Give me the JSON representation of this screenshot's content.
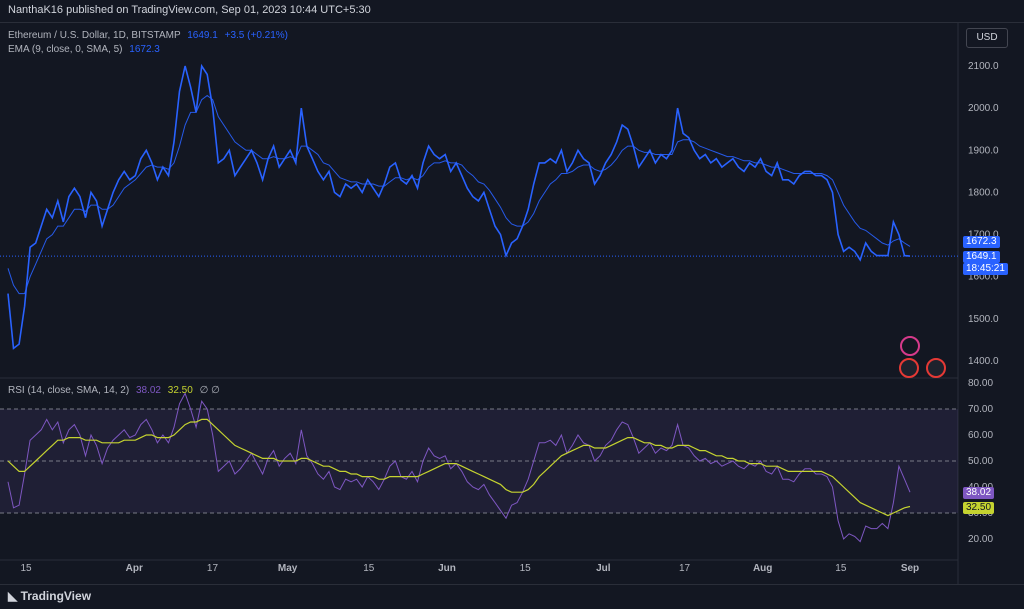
{
  "header": {
    "publisher": "NanthaK16 published on TradingView.com, Sep 01, 2023 10:44 UTC+5:30"
  },
  "price_legend": {
    "symbol": "Ethereum / U.S. Dollar, 1D, BITSTAMP",
    "price": "1649.1",
    "change": "+3.5 (+0.21%)",
    "ema_label": "EMA (9, close, 0, SMA, 5)",
    "ema_value": "1672.3"
  },
  "rsi_legend": {
    "label": "RSI (14, close, SMA, 14, 2)",
    "rsi_value": "38.02",
    "ma_value": "32.50",
    "extra": "∅ ∅"
  },
  "currency_button": "USD",
  "price_tags": {
    "ema": "1672.3",
    "price": "1649.1",
    "countdown": "18:45:21"
  },
  "rsi_tags": {
    "rsi": "38.02",
    "ma": "32.50"
  },
  "footer": {
    "brand": "TradingView"
  },
  "colors": {
    "price_line": "#2962ff",
    "ema_line": "#2962ff",
    "rsi_line": "#7e57c2",
    "rsi_ma_line": "#c5d330",
    "background": "#131722"
  },
  "chart_data": [
    {
      "type": "line",
      "title": "Ethereum / U.S. Dollar, 1D, BITSTAMP",
      "x_tick_labels": [
        "15",
        "Apr",
        "17",
        "May",
        "15",
        "Jun",
        "15",
        "Jul",
        "17",
        "Aug",
        "15",
        "Sep"
      ],
      "y_ticks": [
        "1400.0",
        "1500.0",
        "1600.0",
        "1700.0",
        "1800.0",
        "1900.0",
        "2000.0",
        "2100.0"
      ],
      "ylim": [
        1400,
        2100
      ],
      "series": [
        {
          "name": "Ethereum / U.S. Dollar",
          "values": [
            1560,
            1430,
            1440,
            1530,
            1670,
            1680,
            1720,
            1760,
            1740,
            1780,
            1730,
            1790,
            1810,
            1790,
            1740,
            1800,
            1780,
            1720,
            1760,
            1800,
            1830,
            1850,
            1830,
            1840,
            1880,
            1900,
            1870,
            1830,
            1860,
            1840,
            1920,
            2040,
            2100,
            2050,
            1990,
            2100,
            2080,
            2000,
            1870,
            1880,
            1900,
            1840,
            1860,
            1880,
            1900,
            1870,
            1830,
            1880,
            1910,
            1860,
            1880,
            1900,
            1870,
            2000,
            1910,
            1880,
            1850,
            1830,
            1850,
            1800,
            1790,
            1820,
            1810,
            1820,
            1800,
            1830,
            1810,
            1790,
            1820,
            1860,
            1870,
            1830,
            1820,
            1840,
            1810,
            1870,
            1910,
            1890,
            1880,
            1890,
            1850,
            1870,
            1840,
            1810,
            1790,
            1780,
            1800,
            1760,
            1720,
            1700,
            1650,
            1680,
            1690,
            1720,
            1760,
            1820,
            1870,
            1870,
            1880,
            1870,
            1900,
            1850,
            1870,
            1900,
            1880,
            1870,
            1820,
            1840,
            1870,
            1890,
            1920,
            1960,
            1950,
            1910,
            1860,
            1880,
            1900,
            1870,
            1890,
            1880,
            1900,
            2000,
            1940,
            1930,
            1900,
            1880,
            1890,
            1870,
            1880,
            1860,
            1870,
            1880,
            1860,
            1850,
            1870,
            1860,
            1880,
            1850,
            1840,
            1870,
            1830,
            1830,
            1820,
            1840,
            1850,
            1850,
            1840,
            1840,
            1830,
            1800,
            1700,
            1660,
            1670,
            1660,
            1640,
            1680,
            1660,
            1650,
            1650,
            1650,
            1730,
            1700,
            1650,
            1649
          ]
        },
        {
          "name": "EMA (9, close, 0, SMA, 5)",
          "values": [
            1620,
            1580,
            1560,
            1560,
            1600,
            1630,
            1660,
            1690,
            1700,
            1720,
            1720,
            1740,
            1760,
            1760,
            1755,
            1770,
            1770,
            1760,
            1760,
            1770,
            1790,
            1810,
            1820,
            1830,
            1845,
            1860,
            1865,
            1860,
            1860,
            1855,
            1870,
            1910,
            1960,
            1990,
            1990,
            2020,
            2030,
            2020,
            1980,
            1960,
            1940,
            1920,
            1910,
            1900,
            1900,
            1890,
            1880,
            1880,
            1885,
            1880,
            1880,
            1885,
            1880,
            1910,
            1910,
            1900,
            1890,
            1870,
            1865,
            1850,
            1835,
            1830,
            1825,
            1825,
            1820,
            1820,
            1820,
            1815,
            1815,
            1825,
            1835,
            1835,
            1830,
            1835,
            1830,
            1840,
            1860,
            1870,
            1870,
            1875,
            1870,
            1870,
            1865,
            1850,
            1840,
            1825,
            1820,
            1805,
            1785,
            1765,
            1740,
            1725,
            1720,
            1720,
            1730,
            1750,
            1780,
            1800,
            1820,
            1830,
            1845,
            1845,
            1850,
            1860,
            1865,
            1865,
            1855,
            1850,
            1855,
            1865,
            1880,
            1900,
            1910,
            1910,
            1900,
            1895,
            1895,
            1890,
            1890,
            1890,
            1890,
            1920,
            1925,
            1925,
            1920,
            1910,
            1905,
            1900,
            1895,
            1890,
            1885,
            1885,
            1880,
            1875,
            1875,
            1870,
            1870,
            1865,
            1860,
            1860,
            1855,
            1850,
            1845,
            1845,
            1845,
            1845,
            1845,
            1845,
            1840,
            1830,
            1800,
            1770,
            1750,
            1730,
            1715,
            1710,
            1700,
            1690,
            1680,
            1675,
            1685,
            1690,
            1680,
            1672
          ]
        }
      ]
    },
    {
      "type": "line",
      "title": "RSI (14, close, SMA, 14, 2)",
      "y_ticks": [
        "20.00",
        "30.00",
        "40.00",
        "50.00",
        "60.00",
        "70.00",
        "80.00"
      ],
      "ylim": [
        15,
        80
      ],
      "bands": [
        30,
        50,
        70
      ],
      "series": [
        {
          "name": "RSI",
          "values": [
            42,
            32,
            33,
            45,
            58,
            60,
            62,
            66,
            62,
            65,
            57,
            62,
            64,
            60,
            52,
            60,
            56,
            49,
            55,
            58,
            60,
            62,
            59,
            60,
            64,
            66,
            62,
            57,
            60,
            57,
            63,
            72,
            76,
            70,
            63,
            73,
            70,
            60,
            46,
            48,
            50,
            45,
            47,
            50,
            53,
            49,
            45,
            51,
            54,
            48,
            51,
            53,
            49,
            62,
            52,
            49,
            45,
            43,
            46,
            40,
            39,
            43,
            42,
            43,
            40,
            44,
            42,
            39,
            43,
            48,
            50,
            44,
            43,
            46,
            42,
            50,
            55,
            52,
            51,
            52,
            47,
            49,
            46,
            42,
            40,
            39,
            41,
            37,
            34,
            31,
            28,
            33,
            34,
            38,
            43,
            50,
            57,
            57,
            58,
            56,
            60,
            53,
            56,
            60,
            57,
            56,
            50,
            52,
            56,
            58,
            62,
            65,
            64,
            59,
            53,
            55,
            57,
            53,
            55,
            54,
            56,
            64,
            56,
            55,
            52,
            50,
            51,
            49,
            50,
            48,
            49,
            50,
            48,
            47,
            49,
            48,
            50,
            46,
            45,
            48,
            43,
            43,
            42,
            45,
            47,
            47,
            45,
            45,
            44,
            40,
            27,
            20,
            22,
            21,
            19,
            25,
            24,
            24,
            26,
            24,
            34,
            48,
            43,
            38
          ]
        },
        {
          "name": "SMA",
          "values": [
            50,
            48,
            46,
            46,
            48,
            50,
            52,
            54,
            56,
            58,
            58,
            59,
            59,
            59,
            58,
            58,
            58,
            57,
            57,
            57,
            57,
            58,
            58,
            58,
            59,
            60,
            60,
            59,
            59,
            59,
            60,
            62,
            64,
            65,
            65,
            66,
            66,
            64,
            62,
            60,
            58,
            56,
            55,
            54,
            53,
            52,
            51,
            51,
            51,
            50,
            50,
            50,
            50,
            51,
            51,
            50,
            49,
            48,
            48,
            47,
            46,
            46,
            45,
            45,
            44,
            44,
            44,
            43,
            43,
            44,
            44,
            44,
            44,
            44,
            44,
            45,
            46,
            47,
            48,
            49,
            49,
            49,
            48,
            47,
            46,
            45,
            44,
            43,
            42,
            41,
            39,
            38,
            38,
            38,
            39,
            41,
            44,
            46,
            48,
            50,
            52,
            53,
            54,
            55,
            56,
            56,
            55,
            55,
            55,
            56,
            57,
            58,
            59,
            59,
            58,
            57,
            57,
            56,
            56,
            55,
            55,
            56,
            56,
            56,
            55,
            54,
            54,
            53,
            52,
            52,
            51,
            51,
            50,
            50,
            49,
            49,
            49,
            48,
            48,
            48,
            47,
            46,
            46,
            46,
            46,
            46,
            46,
            46,
            45,
            44,
            42,
            40,
            38,
            36,
            34,
            33,
            32,
            31,
            30,
            29,
            30,
            31,
            32,
            32.5
          ]
        }
      ]
    }
  ]
}
